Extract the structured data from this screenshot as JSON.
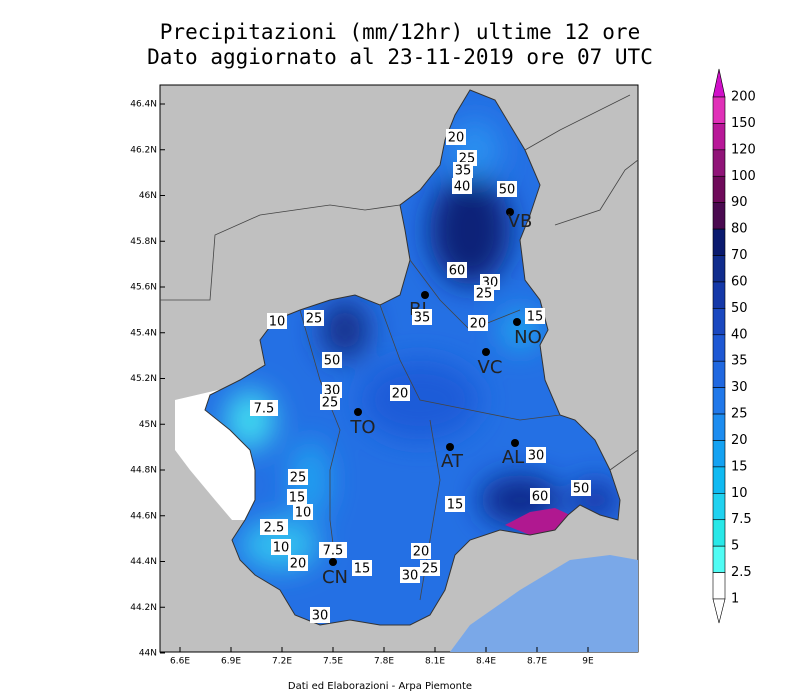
{
  "header": {
    "title": "Precipitazioni (mm/12hr) ultime 12 ore",
    "subtitle": "Dato aggiornato al 23-11-2019 ore 07 UTC"
  },
  "map": {
    "lat_ticks": [
      "46.4N",
      "46.2N",
      "46N",
      "45.8N",
      "45.6N",
      "45.4N",
      "45.2N",
      "45N",
      "44.8N",
      "44.6N",
      "44.4N",
      "44.2N",
      "44N"
    ],
    "lon_ticks": [
      "6.6E",
      "6.9E",
      "7.2E",
      "7.5E",
      "7.8E",
      "8.1E",
      "8.4E",
      "8.7E",
      "9E"
    ],
    "cities": [
      "TO",
      "AT",
      "AL",
      "VC",
      "NO",
      "CN",
      "BI",
      "VB"
    ],
    "contour_labels": [
      20,
      25,
      35,
      40,
      50,
      60,
      30,
      25,
      35,
      20,
      15,
      10,
      25,
      50,
      30,
      25,
      20,
      7.5,
      25,
      15,
      10,
      2.5,
      10,
      20,
      7.5,
      15,
      20,
      25,
      30,
      15,
      30,
      60,
      50,
      30
    ]
  },
  "legend": {
    "levels": [
      200,
      150,
      120,
      100,
      90,
      80,
      70,
      60,
      50,
      40,
      35,
      30,
      25,
      20,
      15,
      10,
      7.5,
      5,
      2.5,
      1
    ],
    "colors": [
      "#d010c8",
      "#e030b8",
      "#b81898",
      "#901478",
      "#6e0a5a",
      "#4a0a50",
      "#0a1a6e",
      "#102c8c",
      "#1438a8",
      "#1a48c0",
      "#1e58d4",
      "#2068e0",
      "#2078ea",
      "#1c8cf0",
      "#14a2f2",
      "#10baf2",
      "#20d2f0",
      "#28e8e8",
      "#50fcf4",
      "#ffffff"
    ]
  },
  "footer": {
    "credit": "Dati ed Elaborazioni - Arpa Piemonte"
  }
}
